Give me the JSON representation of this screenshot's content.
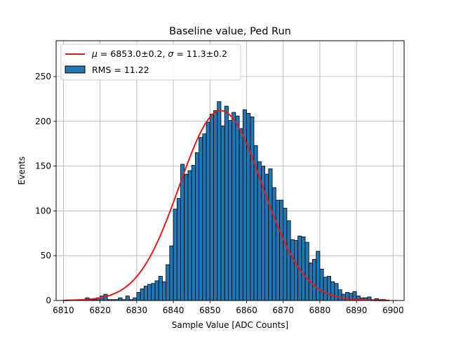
{
  "chart_data": {
    "type": "bar",
    "title": "Baseline value, Ped Run",
    "xlabel": "Sample Value [ADC Counts]",
    "ylabel": "Events",
    "xlim": [
      6808,
      6903
    ],
    "ylim": [
      0,
      290
    ],
    "xticks": [
      6810,
      6820,
      6830,
      6840,
      6850,
      6860,
      6870,
      6880,
      6890,
      6900
    ],
    "yticks": [
      0,
      50,
      100,
      150,
      200,
      250
    ],
    "grid": true,
    "legend_position": "top-left",
    "bin_width": 1,
    "bin_start": 6810,
    "histogram": {
      "name": "RMS = 11.22",
      "color": "#1f77b4",
      "edgecolor": "#000000",
      "values": [
        0,
        0,
        0,
        0,
        0,
        0,
        3,
        2,
        1,
        3,
        5,
        7,
        1,
        1,
        1,
        3,
        1,
        5,
        1,
        3,
        9,
        13,
        16,
        18,
        19,
        22,
        27,
        21,
        40,
        61,
        102,
        114,
        152,
        141,
        145,
        151,
        165,
        182,
        186,
        199,
        208,
        212,
        222,
        195,
        217,
        201,
        210,
        206,
        192,
        213,
        209,
        205,
        173,
        155,
        150,
        141,
        147,
        126,
        112,
        112,
        103,
        89,
        68,
        67,
        72,
        71,
        65,
        42,
        46,
        55,
        35,
        26,
        27,
        21,
        19,
        12,
        7,
        9,
        8,
        10,
        5,
        3,
        3,
        4,
        1,
        2,
        1,
        1,
        0,
        0
      ],
      "legend_label": "RMS = 11.22"
    },
    "fit_curve": {
      "type": "gaussian",
      "mu": 6853.0,
      "sigma": 11.3,
      "amplitude": 212,
      "x_range": [
        6810,
        6899
      ],
      "color": "#e41a1c",
      "legend_label": "μ = 6853.0±0.2, σ = 11.3±0.2"
    }
  },
  "labels": {
    "title": "Baseline value, Ped Run",
    "xlabel": "Sample Value [ADC Counts]",
    "ylabel": "Events",
    "legend_fit_parts": {
      "mu_sym": "μ",
      "mu_text": " = 6853.0±0.2, ",
      "sigma_sym": "σ",
      "sigma_text": " = 11.3±0.2"
    },
    "legend_hist": "RMS = 11.22"
  }
}
